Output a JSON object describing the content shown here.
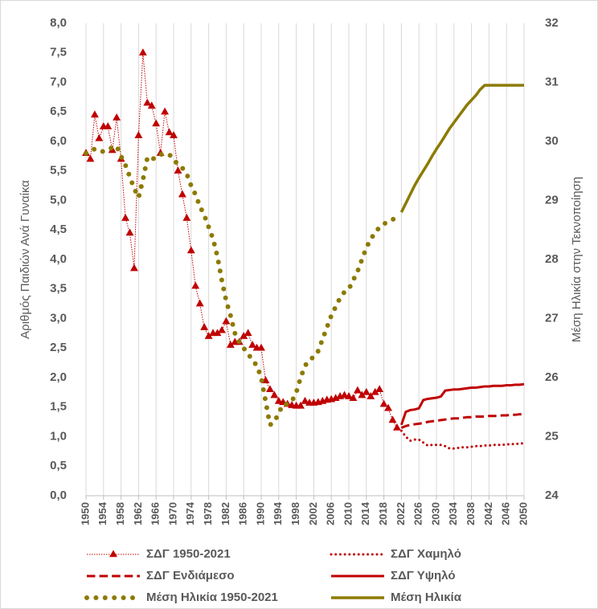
{
  "chart_data": {
    "type": "line",
    "y_label": "Αριθμός Παιδιών Ανά Γυναίκα",
    "y2_label": "Μέση Ηλικία στην Τεκνοποίηση",
    "x": [
      1950,
      1951,
      1952,
      1953,
      1954,
      1955,
      1956,
      1957,
      1958,
      1959,
      1960,
      1961,
      1962,
      1963,
      1964,
      1965,
      1966,
      1967,
      1968,
      1969,
      1970,
      1971,
      1972,
      1973,
      1974,
      1975,
      1976,
      1977,
      1978,
      1979,
      1980,
      1981,
      1982,
      1983,
      1984,
      1985,
      1986,
      1987,
      1988,
      1989,
      1990,
      1991,
      1992,
      1993,
      1994,
      1995,
      1996,
      1997,
      1998,
      1999,
      2000,
      2001,
      2002,
      2003,
      2004,
      2005,
      2006,
      2007,
      2008,
      2009,
      2010,
      2011,
      2012,
      2013,
      2014,
      2015,
      2016,
      2017,
      2018,
      2019,
      2020,
      2021,
      2022,
      2023,
      2024,
      2025,
      2026,
      2027,
      2028,
      2029,
      2030,
      2031,
      2032,
      2033,
      2034,
      2035,
      2036,
      2037,
      2038,
      2039,
      2040,
      2041,
      2042,
      2043,
      2044,
      2045,
      2046,
      2047,
      2048,
      2049,
      2050
    ],
    "xlim": [
      1950,
      2050
    ],
    "xticks": [
      1950,
      1954,
      1958,
      1962,
      1966,
      1970,
      1974,
      1978,
      1982,
      1986,
      1990,
      1994,
      1998,
      2002,
      2006,
      2010,
      2014,
      2018,
      2022,
      2026,
      2030,
      2034,
      2038,
      2042,
      2046,
      2050
    ],
    "ylim": [
      0,
      8
    ],
    "yticks": [
      {
        "value": 0,
        "label": "0,0"
      },
      {
        "value": 0.5,
        "label": "0,5"
      },
      {
        "value": 1,
        "label": "1,0"
      },
      {
        "value": 1.5,
        "label": "1,5"
      },
      {
        "value": 2,
        "label": "2,0"
      },
      {
        "value": 2.5,
        "label": "2,5"
      },
      {
        "value": 3,
        "label": "3,0"
      },
      {
        "value": 3.5,
        "label": "3,5"
      },
      {
        "value": 4,
        "label": "4,0"
      },
      {
        "value": 4.5,
        "label": "4,5"
      },
      {
        "value": 5,
        "label": "5,0"
      },
      {
        "value": 5.5,
        "label": "5,5"
      },
      {
        "value": 6,
        "label": "6,0"
      },
      {
        "value": 6.5,
        "label": "6,5"
      },
      {
        "value": 7,
        "label": "7,0"
      },
      {
        "value": 7.5,
        "label": "7,5"
      },
      {
        "value": 8,
        "label": "8,0"
      }
    ],
    "y2lim": [
      24,
      32
    ],
    "y2ticks": [
      24,
      25,
      26,
      27,
      28,
      29,
      30,
      31,
      32
    ],
    "grid": "x",
    "series": [
      {
        "name": "ΣΔΓ 1950-2021",
        "color": "#c00000",
        "line_style": "dotted",
        "line_width": 1,
        "marker": "triangle",
        "values": [
          5.8,
          5.7,
          6.45,
          6.05,
          6.25,
          6.25,
          5.85,
          6.4,
          5.7,
          4.7,
          4.45,
          3.85,
          6.1,
          7.5,
          6.65,
          6.6,
          6.3,
          5.8,
          6.5,
          6.15,
          6.1,
          5.5,
          5.1,
          4.7,
          4.15,
          3.55,
          3.25,
          2.85,
          2.7,
          2.75,
          2.75,
          2.8,
          2.95,
          2.55,
          2.6,
          2.6,
          2.7,
          2.75,
          2.55,
          2.5,
          2.5,
          1.95,
          1.8,
          1.7,
          1.6,
          1.58,
          1.55,
          1.53,
          1.52,
          1.52,
          1.6,
          1.57,
          1.57,
          1.58,
          1.6,
          1.62,
          1.63,
          1.65,
          1.68,
          1.7,
          1.68,
          1.65,
          1.78,
          1.7,
          1.75,
          1.68,
          1.75,
          1.8,
          1.55,
          1.48,
          1.28,
          1.15,
          null,
          null,
          null,
          null,
          null,
          null,
          null,
          null,
          null,
          null,
          null,
          null,
          null,
          null,
          null,
          null,
          null,
          null,
          null,
          null,
          null,
          null,
          null,
          null,
          null,
          null,
          null,
          null,
          null
        ]
      },
      {
        "name": "ΣΔΓ Χαμηλό",
        "color": "#c00000",
        "line_style": "dotted",
        "line_width": 3,
        "values": [
          null,
          null,
          null,
          null,
          null,
          null,
          null,
          null,
          null,
          null,
          null,
          null,
          null,
          null,
          null,
          null,
          null,
          null,
          null,
          null,
          null,
          null,
          null,
          null,
          null,
          null,
          null,
          null,
          null,
          null,
          null,
          null,
          null,
          null,
          null,
          null,
          null,
          null,
          null,
          null,
          null,
          null,
          null,
          null,
          null,
          null,
          null,
          null,
          null,
          null,
          null,
          null,
          null,
          null,
          null,
          null,
          null,
          null,
          null,
          null,
          null,
          null,
          null,
          null,
          null,
          null,
          null,
          null,
          null,
          null,
          null,
          null,
          1.1,
          1.0,
          0.93,
          0.95,
          0.95,
          0.9,
          0.85,
          0.86,
          0.86,
          0.86,
          0.84,
          0.8,
          0.8,
          0.81,
          0.82,
          0.82,
          0.83,
          0.84,
          0.84,
          0.85,
          0.85,
          0.86,
          0.86,
          0.86,
          0.87,
          0.87,
          0.88,
          0.88,
          0.89
        ]
      },
      {
        "name": "ΣΔΓ Ενδιάμεσο",
        "color": "#c00000",
        "line_style": "dashed",
        "line_width": 3,
        "values": [
          null,
          null,
          null,
          null,
          null,
          null,
          null,
          null,
          null,
          null,
          null,
          null,
          null,
          null,
          null,
          null,
          null,
          null,
          null,
          null,
          null,
          null,
          null,
          null,
          null,
          null,
          null,
          null,
          null,
          null,
          null,
          null,
          null,
          null,
          null,
          null,
          null,
          null,
          null,
          null,
          null,
          null,
          null,
          null,
          null,
          null,
          null,
          null,
          null,
          null,
          null,
          null,
          null,
          null,
          null,
          null,
          null,
          null,
          null,
          null,
          null,
          null,
          null,
          null,
          null,
          null,
          null,
          null,
          null,
          null,
          null,
          null,
          1.15,
          1.18,
          1.2,
          1.21,
          1.22,
          1.23,
          1.25,
          1.26,
          1.27,
          1.28,
          1.29,
          1.3,
          1.31,
          1.31,
          1.32,
          1.33,
          1.33,
          1.34,
          1.34,
          1.34,
          1.35,
          1.35,
          1.35,
          1.36,
          1.36,
          1.37,
          1.37,
          1.38,
          1.38
        ]
      },
      {
        "name": "ΣΔΓ Υψηλό",
        "color": "#c00000",
        "line_style": "solid",
        "line_width": 3,
        "values": [
          null,
          null,
          null,
          null,
          null,
          null,
          null,
          null,
          null,
          null,
          null,
          null,
          null,
          null,
          null,
          null,
          null,
          null,
          null,
          null,
          null,
          null,
          null,
          null,
          null,
          null,
          null,
          null,
          null,
          null,
          null,
          null,
          null,
          null,
          null,
          null,
          null,
          null,
          null,
          null,
          null,
          null,
          null,
          null,
          null,
          null,
          null,
          null,
          null,
          null,
          null,
          null,
          null,
          null,
          null,
          null,
          null,
          null,
          null,
          null,
          null,
          null,
          null,
          null,
          null,
          null,
          null,
          null,
          null,
          null,
          null,
          null,
          1.2,
          1.42,
          1.45,
          1.46,
          1.48,
          1.62,
          1.64,
          1.65,
          1.66,
          1.68,
          1.78,
          1.79,
          1.8,
          1.8,
          1.81,
          1.82,
          1.83,
          1.83,
          1.84,
          1.85,
          1.85,
          1.86,
          1.86,
          1.86,
          1.87,
          1.87,
          1.88,
          1.88,
          1.89
        ]
      },
      {
        "name": "Μέση Ηλικία 1950-2021",
        "color": "#8c7a00",
        "line_style": "dotted",
        "line_width": 6,
        "axis": "y2",
        "values": [
          29.8,
          29.85,
          29.87,
          29.83,
          29.83,
          29.85,
          29.9,
          29.92,
          29.75,
          29.6,
          29.4,
          29.2,
          29.05,
          29.35,
          29.72,
          29.68,
          29.75,
          29.78,
          29.78,
          29.78,
          29.7,
          29.6,
          29.55,
          29.45,
          29.25,
          29.1,
          28.9,
          28.75,
          28.55,
          28.35,
          28.05,
          27.65,
          27.3,
          27.05,
          26.75,
          26.6,
          26.5,
          26.4,
          26.3,
          26.2,
          26.0,
          25.6,
          25.2,
          25.25,
          25.4,
          25.55,
          25.55,
          25.6,
          25.75,
          26.0,
          26.2,
          26.3,
          26.35,
          26.45,
          26.65,
          26.85,
          27.05,
          27.2,
          27.35,
          27.45,
          27.5,
          27.65,
          27.8,
          28.0,
          28.2,
          28.35,
          28.45,
          28.55,
          28.6,
          28.65,
          28.68,
          28.7,
          null,
          null,
          null,
          null,
          null,
          null,
          null,
          null,
          null,
          null,
          null,
          null,
          null,
          null,
          null,
          null,
          null,
          null,
          null,
          null,
          null,
          null,
          null,
          null,
          null,
          null,
          null,
          null,
          null
        ]
      },
      {
        "name": "Μέση Ηλικία",
        "color": "#8c7a00",
        "line_style": "solid",
        "line_width": 3.5,
        "axis": "y2",
        "values": [
          null,
          null,
          null,
          null,
          null,
          null,
          null,
          null,
          null,
          null,
          null,
          null,
          null,
          null,
          null,
          null,
          null,
          null,
          null,
          null,
          null,
          null,
          null,
          null,
          null,
          null,
          null,
          null,
          null,
          null,
          null,
          null,
          null,
          null,
          null,
          null,
          null,
          null,
          null,
          null,
          null,
          null,
          null,
          null,
          null,
          null,
          null,
          null,
          null,
          null,
          null,
          null,
          null,
          null,
          null,
          null,
          null,
          null,
          null,
          null,
          null,
          null,
          null,
          null,
          null,
          null,
          null,
          null,
          null,
          null,
          null,
          null,
          28.8,
          28.95,
          29.1,
          29.25,
          29.38,
          29.5,
          29.62,
          29.75,
          29.87,
          29.98,
          30.1,
          30.22,
          30.32,
          30.42,
          30.52,
          30.62,
          30.7,
          30.78,
          30.88,
          30.95,
          30.95,
          30.95,
          30.95,
          30.95,
          30.95,
          30.95,
          30.95,
          30.95,
          30.95
        ]
      }
    ]
  }
}
